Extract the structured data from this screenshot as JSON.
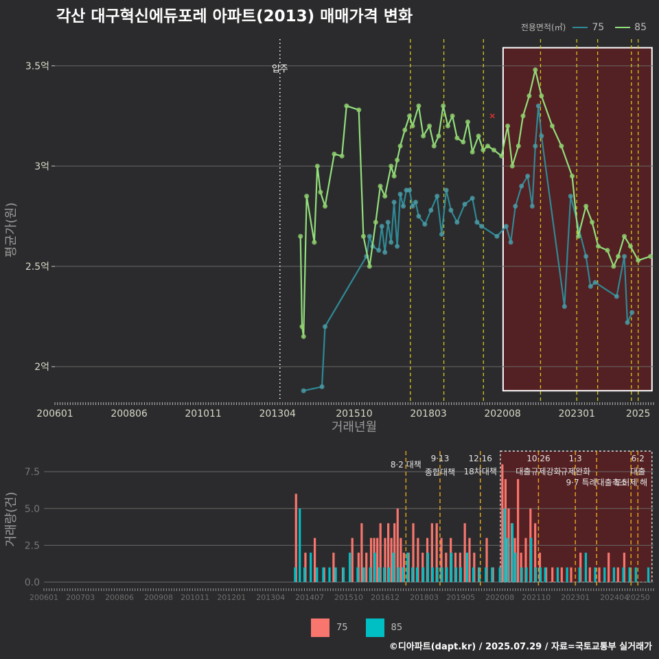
{
  "title": "각산 대구혁신에듀포레 아파트(2013) 매매가격 변화",
  "caption": "©디아파트(dapt.kr) / 2025.07.29 / 자료=국토교통부 실거래가",
  "colors": {
    "bg": "#2b2b2d",
    "grid": "#6a6a6a",
    "series75_line": "#2f8a96",
    "series75_point": "#4a9aa4",
    "series85_line": "#93e07c",
    "series85_point": "#8fcf6e",
    "bar75": "#f8766d",
    "bar85": "#00bfc4",
    "policy_line": "#d7c81c",
    "policy_line_bottom": "#e0a020",
    "highlight_fill": "#5a1f22",
    "highlight_border": "#ffffff"
  },
  "legend_top": {
    "title": "전용면적(㎡)",
    "items": [
      {
        "label": "75",
        "color": "#2f8a96"
      },
      {
        "label": "85",
        "color": "#93e07c"
      }
    ]
  },
  "legend_bottom": {
    "items": [
      {
        "label": "75",
        "color": "#f8766d"
      },
      {
        "label": "85",
        "color": "#00bfc4"
      }
    ]
  },
  "chart_data": [
    {
      "type": "line",
      "title": "각산 대구혁신에듀포레 아파트(2013) 매매가격 변화",
      "xlabel": "거래년월",
      "ylabel": "평균가(원)",
      "ylim": [
        1.85,
        3.65
      ],
      "y_ticks": [
        2,
        2.5,
        3,
        3.5
      ],
      "y_tick_labels": [
        "2억",
        "2.5억",
        "3억",
        "3.5억"
      ],
      "x_ticks": [
        2006.0,
        2008.417,
        2010.833,
        2013.25,
        2015.75,
        2018.167,
        2020.583,
        2023.0,
        2025.0
      ],
      "x_tick_labels": [
        "200601",
        "200806",
        "201011",
        "201304",
        "201510",
        "201803",
        "202008",
        "202301",
        "2025"
      ],
      "xlim": [
        2006.0,
        2025.5
      ],
      "move_in": {
        "x": 2013.33,
        "label": "입주"
      },
      "policy_lines": [
        2017.58,
        2018.67,
        2019.96,
        2021.82,
        2023.0,
        2023.68,
        2024.78,
        2025.0
      ],
      "highlight": {
        "x0": 2020.6,
        "x1": 2025.45,
        "y0": 1.88,
        "y1": 3.59
      },
      "marker_x": {
        "x": 2020.25,
        "y": 3.25
      },
      "series": [
        {
          "name": "75",
          "x": [
            2014.1,
            2014.7,
            2014.8,
            2016.15,
            2016.25,
            2016.35,
            2016.55,
            2016.65,
            2016.75,
            2016.85,
            2016.95,
            2017.05,
            2017.15,
            2017.25,
            2017.35,
            2017.45,
            2017.55,
            2017.65,
            2017.75,
            2017.85,
            2018.05,
            2018.25,
            2018.45,
            2018.6,
            2018.75,
            2018.9,
            2019.1,
            2019.35,
            2019.6,
            2019.75,
            2019.9,
            2020.4,
            2020.7,
            2020.85,
            2021.0,
            2021.2,
            2021.4,
            2021.55,
            2021.65,
            2021.75,
            2021.85,
            2022.6,
            2022.8,
            2023.3,
            2023.45,
            2023.6,
            2024.3,
            2024.55,
            2024.65,
            2024.8
          ],
          "y": [
            1.88,
            1.9,
            2.2,
            2.55,
            2.65,
            2.6,
            2.58,
            2.7,
            2.57,
            2.72,
            2.62,
            2.82,
            2.6,
            2.86,
            2.8,
            2.88,
            2.88,
            2.8,
            2.82,
            2.75,
            2.71,
            2.78,
            2.85,
            2.66,
            2.88,
            2.78,
            2.72,
            2.81,
            2.84,
            2.72,
            2.7,
            2.65,
            2.7,
            2.62,
            2.8,
            2.9,
            2.95,
            2.8,
            3.1,
            3.3,
            3.15,
            2.3,
            2.85,
            2.55,
            2.4,
            2.42,
            2.35,
            2.55,
            2.22,
            2.27
          ]
        },
        {
          "name": "85",
          "x": [
            2014.0,
            2014.05,
            2014.1,
            2014.2,
            2014.45,
            2014.55,
            2014.65,
            2014.8,
            2015.1,
            2015.35,
            2015.5,
            2015.9,
            2016.05,
            2016.25,
            2016.45,
            2016.6,
            2016.75,
            2016.95,
            2017.05,
            2017.15,
            2017.25,
            2017.4,
            2017.55,
            2017.65,
            2017.85,
            2018.0,
            2018.2,
            2018.35,
            2018.5,
            2018.65,
            2018.8,
            2018.95,
            2019.1,
            2019.3,
            2019.45,
            2019.6,
            2019.8,
            2019.95,
            2020.1,
            2020.3,
            2020.55,
            2020.75,
            2020.9,
            2021.1,
            2021.25,
            2021.45,
            2021.65,
            2021.85,
            2022.2,
            2022.5,
            2022.85,
            2023.05,
            2023.3,
            2023.5,
            2023.7,
            2024.0,
            2024.2,
            2024.35,
            2024.55,
            2024.75,
            2025.0,
            2025.4
          ],
          "y": [
            2.65,
            2.2,
            2.15,
            2.85,
            2.62,
            3.0,
            2.87,
            2.8,
            3.06,
            3.05,
            3.3,
            3.28,
            2.65,
            2.5,
            2.72,
            2.9,
            2.85,
            3.0,
            2.95,
            3.03,
            3.1,
            3.18,
            3.25,
            3.2,
            3.3,
            3.15,
            3.2,
            3.1,
            3.15,
            3.3,
            3.2,
            3.25,
            3.14,
            3.12,
            3.22,
            3.07,
            3.15,
            3.08,
            3.1,
            3.08,
            3.05,
            3.2,
            3.0,
            3.1,
            3.25,
            3.35,
            3.48,
            3.35,
            3.2,
            3.1,
            2.95,
            2.65,
            2.8,
            2.72,
            2.6,
            2.58,
            2.5,
            2.55,
            2.65,
            2.6,
            2.53,
            2.55
          ]
        }
      ]
    },
    {
      "type": "bar",
      "xlabel": "",
      "ylabel": "거래량(건)",
      "ylim": [
        0,
        9
      ],
      "y_ticks": [
        0,
        2.5,
        5,
        7.5
      ],
      "y_tick_labels": [
        "0.0",
        "2.5",
        "5.0",
        "7.5"
      ],
      "x_ticks": [
        2006.0,
        2007.167,
        2008.417,
        2009.667,
        2010.833,
        2012.0,
        2013.25,
        2014.5,
        2015.75,
        2016.917,
        2018.167,
        2019.333,
        2020.583,
        2021.75,
        2023.0,
        2024.25,
        2025.0
      ],
      "x_tick_labels": [
        "200601",
        "200703",
        "200806",
        "200908",
        "201011",
        "201201",
        "201304",
        "201407",
        "201510",
        "201612",
        "201803",
        "201905",
        "202008",
        "202110",
        "202301",
        "202404",
        "20250"
      ],
      "xlim": [
        2006.0,
        2025.5
      ],
      "policy_lines": [
        2017.58,
        2018.67,
        2019.96,
        2021.82,
        2023.0,
        2023.68,
        2024.78,
        2025.0
      ],
      "policy_labels": [
        {
          "x": 2017.58,
          "date": "8·2 대책",
          "name": ""
        },
        {
          "x": 2018.67,
          "date": "9·13",
          "name": "종합대책"
        },
        {
          "x": 2019.96,
          "date": "12·16",
          "name": "18차대책"
        },
        {
          "x": 2021.82,
          "date": "10·26",
          "name": "대출규제강화"
        },
        {
          "x": 2023.0,
          "date": "1·3",
          "name": "규제완화"
        },
        {
          "x": 2023.68,
          "date": "",
          "name": "9·7 특례대출축소"
        },
        {
          "x": 2024.78,
          "date": "",
          "name": "토허제 해"
        },
        {
          "x": 2025.0,
          "date": "6·2",
          "name": "대출"
        }
      ],
      "highlight": {
        "x0": 2020.6,
        "x1": 2025.45
      },
      "series": [
        {
          "name": "75",
          "x": [
            2014.1,
            2014.4,
            2014.7,
            2015.0,
            2015.3,
            2015.6,
            2015.9,
            2016.1,
            2016.2,
            2016.35,
            2016.5,
            2016.6,
            2016.7,
            2016.8,
            2016.95,
            2017.05,
            2017.15,
            2017.25,
            2017.35,
            2017.45,
            2017.55,
            2017.7,
            2017.85,
            2018.0,
            2018.15,
            2018.3,
            2018.45,
            2018.6,
            2018.75,
            2018.9,
            2019.05,
            2019.2,
            2019.35,
            2019.5,
            2019.65,
            2019.8,
            2019.95,
            2020.2,
            2020.4,
            2020.7,
            2020.8,
            2020.9,
            2021.0,
            2021.1,
            2021.2,
            2021.3,
            2021.45,
            2021.6,
            2021.75,
            2021.9,
            2022.1,
            2022.3,
            2022.6,
            2022.9,
            2023.2,
            2023.5,
            2023.8,
            2024.1,
            2024.4,
            2024.6,
            2024.8
          ],
          "y": [
            6,
            2,
            3,
            1,
            2,
            1,
            3,
            2,
            4,
            2,
            3,
            3,
            3,
            4,
            3,
            4,
            3,
            4,
            5,
            3,
            2,
            2,
            4,
            3,
            2,
            3,
            4,
            4,
            3,
            2,
            3,
            2,
            2,
            4,
            3,
            2,
            1,
            3,
            1,
            8,
            7,
            5,
            4,
            3,
            7,
            2,
            3,
            5,
            4,
            2,
            1,
            1,
            1,
            1,
            2,
            1,
            1,
            2,
            1,
            2,
            1
          ]
        },
        {
          "name": "85",
          "x": [
            2014.0,
            2014.15,
            2014.3,
            2014.5,
            2014.7,
            2014.9,
            2015.1,
            2015.3,
            2015.55,
            2015.75,
            2016.0,
            2016.2,
            2016.4,
            2016.55,
            2016.7,
            2016.85,
            2017.0,
            2017.15,
            2017.3,
            2017.45,
            2017.6,
            2017.75,
            2017.9,
            2018.1,
            2018.25,
            2018.4,
            2018.55,
            2018.7,
            2018.85,
            2019.0,
            2019.15,
            2019.3,
            2019.5,
            2019.7,
            2019.9,
            2020.1,
            2020.3,
            2020.55,
            2020.7,
            2020.8,
            2020.95,
            2021.05,
            2021.25,
            2021.4,
            2021.55,
            2021.7,
            2021.85,
            2022.0,
            2022.4,
            2022.7,
            2023.1,
            2023.3,
            2023.6,
            2023.9,
            2024.2,
            2024.5,
            2024.7,
            2024.9,
            2025.3
          ],
          "y": [
            1,
            5,
            1,
            2,
            1,
            1,
            1,
            1,
            1,
            2,
            1,
            1,
            1,
            2,
            1,
            1,
            1,
            2,
            1,
            1,
            2,
            1,
            1,
            1,
            2,
            1,
            1,
            1,
            1,
            2,
            1,
            1,
            2,
            1,
            1,
            1,
            1,
            1,
            5,
            3,
            4,
            2,
            1,
            1,
            3,
            1,
            1,
            1,
            1,
            1,
            1,
            2,
            1,
            1,
            1,
            1,
            1,
            1,
            1
          ]
        }
      ]
    }
  ]
}
